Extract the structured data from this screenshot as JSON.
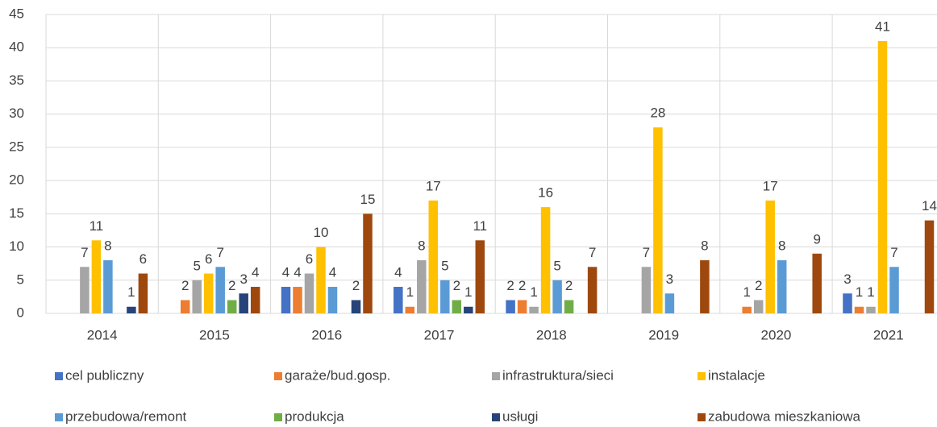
{
  "chart_data": {
    "type": "bar",
    "categories": [
      "2014",
      "2015",
      "2016",
      "2017",
      "2018",
      "2019",
      "2020",
      "2021"
    ],
    "series": [
      {
        "name": "cel publiczny",
        "color": "#4472c4",
        "values": [
          null,
          null,
          4,
          4,
          2,
          null,
          null,
          3
        ]
      },
      {
        "name": "garaże/bud.gosp.",
        "color": "#ed7d31",
        "values": [
          null,
          2,
          4,
          1,
          2,
          null,
          1,
          1
        ]
      },
      {
        "name": "infrastruktura/sieci",
        "color": "#a5a5a5",
        "values": [
          7,
          5,
          6,
          8,
          1,
          7,
          2,
          1
        ]
      },
      {
        "name": "instalacje",
        "color": "#ffc000",
        "values": [
          11,
          6,
          10,
          17,
          16,
          28,
          17,
          41
        ]
      },
      {
        "name": "przebudowa/remont",
        "color": "#5b9bd5",
        "values": [
          8,
          7,
          4,
          5,
          5,
          3,
          8,
          7
        ]
      },
      {
        "name": "produkcja",
        "color": "#70ad47",
        "values": [
          null,
          2,
          null,
          2,
          2,
          null,
          null,
          null
        ]
      },
      {
        "name": "usługi",
        "color": "#264478",
        "values": [
          1,
          3,
          2,
          1,
          null,
          null,
          null,
          null
        ]
      },
      {
        "name": "zabudowa mieszkaniowa",
        "color": "#9e480e",
        "values": [
          6,
          4,
          15,
          11,
          7,
          8,
          9,
          14
        ]
      }
    ],
    "ylim": [
      0,
      45
    ],
    "yticks": [
      0,
      5,
      10,
      15,
      20,
      25,
      30,
      35,
      40,
      45
    ],
    "grid": true,
    "legend": "bottom"
  }
}
